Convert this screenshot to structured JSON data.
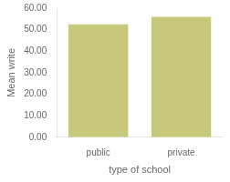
{
  "chart_data": {
    "type": "bar",
    "categories": [
      "public",
      "private"
    ],
    "values": [
      52.5,
      56.0
    ],
    "color": "#c8c87a",
    "xlabel": "type of school",
    "ylabel": "Mean write",
    "ylim": [
      0,
      60
    ],
    "yticks": [
      {
        "value": 0,
        "label": "0.00"
      },
      {
        "value": 10,
        "label": "10.00"
      },
      {
        "value": 20,
        "label": "20.00"
      },
      {
        "value": 30,
        "label": "30.00"
      },
      {
        "value": 40,
        "label": "40.00"
      },
      {
        "value": 50,
        "label": "50.00"
      },
      {
        "value": 60,
        "label": "60.00"
      }
    ],
    "grid": false
  }
}
